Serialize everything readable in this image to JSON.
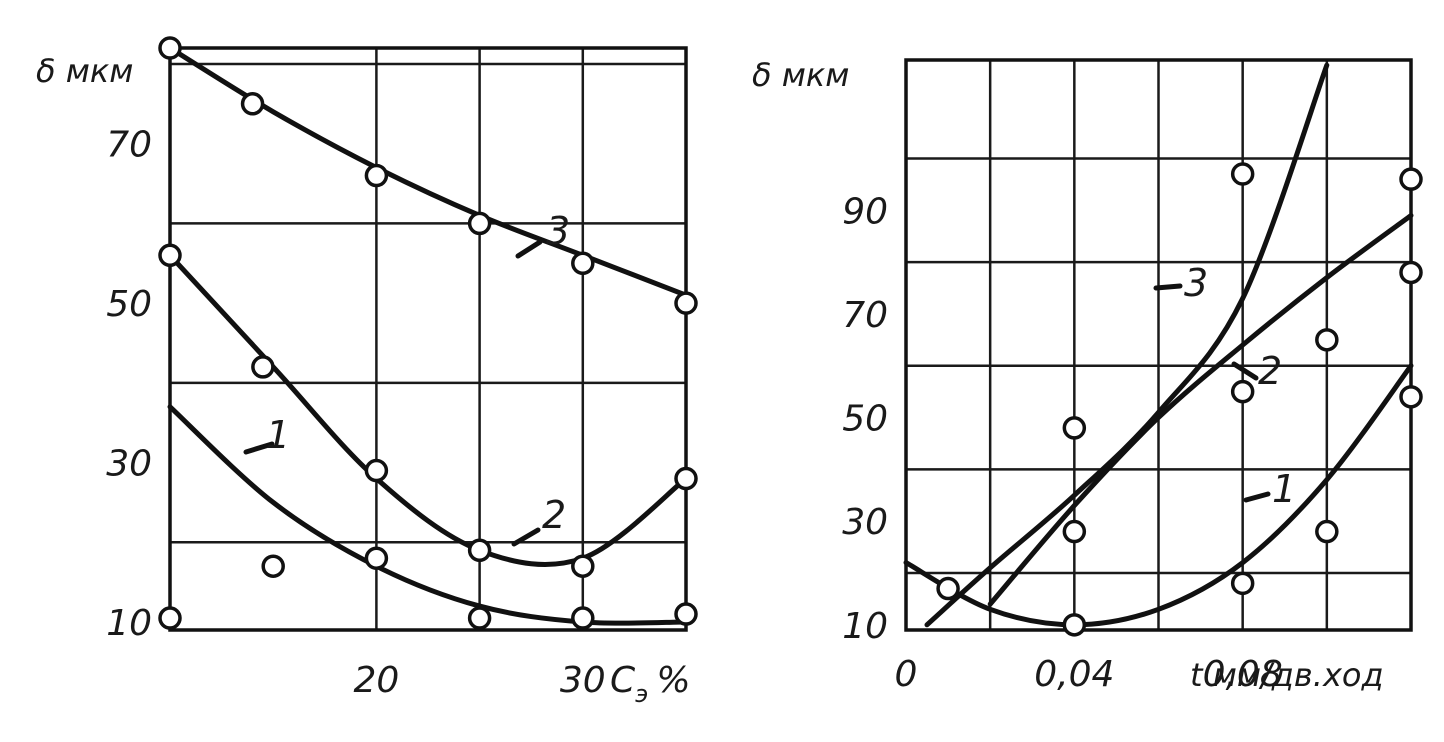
{
  "chart_data": [
    {
      "type": "line",
      "ylabel": "δ мкм",
      "xlabel": "C",
      "xlabel_sub": "э",
      "xlabel_unit": "%",
      "xlim": [
        10,
        35
      ],
      "ylim": [
        9,
        82
      ],
      "x_ticks": [
        20,
        30
      ],
      "y_ticks": [
        10,
        30,
        50,
        70
      ],
      "grid": true,
      "series": [
        {
          "name": "1",
          "x": [
            10,
            15,
            20,
            25,
            30,
            35
          ],
          "y": [
            37,
            25,
            17,
            12,
            10,
            10
          ]
        },
        {
          "name": "2",
          "x": [
            10,
            15,
            20,
            25,
            30,
            35
          ],
          "y": [
            56,
            42,
            28,
            19,
            18,
            28
          ]
        },
        {
          "name": "3",
          "x": [
            10,
            15,
            20,
            25,
            30,
            35
          ],
          "y": [
            82,
            74,
            67,
            61,
            56,
            51
          ]
        }
      ],
      "points": [
        {
          "series": "1",
          "x": 10,
          "y": 10.5
        },
        {
          "series": "1",
          "x": 20,
          "y": 18
        },
        {
          "series": "1",
          "x": 25,
          "y": 10.5
        },
        {
          "series": "1",
          "x": 30,
          "y": 10.5
        },
        {
          "series": "1",
          "x": 35,
          "y": 11
        },
        {
          "series": "2",
          "x": 10,
          "y": 56
        },
        {
          "series": "2",
          "x": 14.5,
          "y": 42
        },
        {
          "series": "2",
          "x": 20,
          "y": 29
        },
        {
          "series": "2",
          "x": 25,
          "y": 19
        },
        {
          "series": "2",
          "x": 30,
          "y": 17
        },
        {
          "series": "2",
          "x": 35,
          "y": 28
        },
        {
          "series": "3",
          "x": 10,
          "y": 82
        },
        {
          "series": "3",
          "x": 14,
          "y": 75
        },
        {
          "series": "3",
          "x": 20,
          "y": 66
        },
        {
          "series": "3",
          "x": 25,
          "y": 60
        },
        {
          "series": "3",
          "x": 30,
          "y": 55
        },
        {
          "series": "3",
          "x": 35,
          "y": 50
        },
        {
          "series": "",
          "x": 15,
          "y": 17
        }
      ]
    },
    {
      "type": "line",
      "ylabel": "δ мкм",
      "xlabel": "t мм/дв.ход",
      "xlim": [
        0,
        0.12
      ],
      "ylim": [
        9,
        119
      ],
      "x_ticks": [
        "0",
        "0,04",
        "0,08"
      ],
      "y_ticks": [
        10,
        30,
        50,
        70,
        90
      ],
      "grid": true,
      "series": [
        {
          "name": "1",
          "x": [
            0.0,
            0.02,
            0.04,
            0.06,
            0.08,
            0.1,
            0.12
          ],
          "y": [
            22,
            13,
            10,
            13,
            22,
            38,
            60
          ]
        },
        {
          "name": "2",
          "x": [
            0.02,
            0.04,
            0.06,
            0.08,
            0.1,
            0.12
          ],
          "y": [
            14,
            33,
            50,
            64,
            77,
            89
          ]
        },
        {
          "name": "3",
          "x": [
            0.005,
            0.02,
            0.04,
            0.06,
            0.08,
            0.1
          ],
          "y": [
            10,
            21,
            35,
            51,
            73,
            118
          ]
        }
      ],
      "points": [
        {
          "series": "1",
          "x": 0.04,
          "y": 10
        },
        {
          "series": "1",
          "x": 0.08,
          "y": 18
        },
        {
          "series": "1",
          "x": 0.1,
          "y": 28
        },
        {
          "series": "1",
          "x": 0.12,
          "y": 54
        },
        {
          "series": "2",
          "x": 0.04,
          "y": 28
        },
        {
          "series": "2",
          "x": 0.1,
          "y": 65
        },
        {
          "series": "2",
          "x": 0.12,
          "y": 78
        },
        {
          "series": "2",
          "x": 0.12,
          "y": 96
        },
        {
          "series": "3",
          "x": 0.01,
          "y": 17
        },
        {
          "series": "3",
          "x": 0.04,
          "y": 48
        },
        {
          "series": "3",
          "x": 0.08,
          "y": 97
        },
        {
          "series": "",
          "x": 0.08,
          "y": 55
        }
      ]
    }
  ]
}
